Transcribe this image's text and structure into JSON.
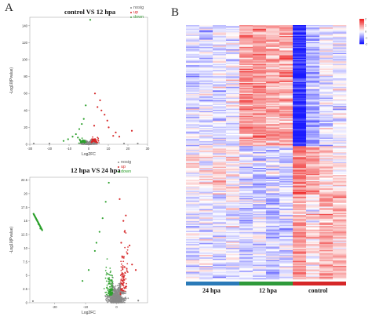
{
  "panels": {
    "a": "A",
    "b": "B"
  },
  "chart_data": [
    {
      "type": "scatter",
      "title": "control VS 12 hpa",
      "xlabel": "Log2FC",
      "ylabel": "-Log10(Pvalue)",
      "xlim": [
        -30,
        30
      ],
      "ylim": [
        0,
        150
      ],
      "xticks": [
        -30,
        -20,
        -10,
        0,
        10,
        20,
        30
      ],
      "yticks": [
        0,
        20,
        40,
        60,
        80,
        100,
        120,
        140
      ],
      "legend": [
        "nosig",
        "up",
        "down"
      ],
      "legend_position": "top-right",
      "colors": {
        "nosig": "#8a8a8a",
        "up": "#d62728",
        "down": "#2ca02c"
      },
      "series": [
        {
          "name": "up",
          "points": [
            [
              3.2,
              60
            ],
            [
              5.8,
              52
            ],
            [
              8.1,
              35
            ],
            [
              4.5,
              44
            ],
            [
              10.2,
              20
            ],
            [
              12.5,
              10
            ],
            [
              15.6,
              9
            ],
            [
              22,
              16
            ],
            [
              6.5,
              40
            ],
            [
              9.5,
              28
            ],
            [
              2.8,
              22
            ],
            [
              13.8,
              14
            ]
          ]
        },
        {
          "name": "down",
          "points": [
            [
              -2.5,
              30
            ],
            [
              -4.8,
              18
            ],
            [
              -6.5,
              12
            ],
            [
              -8.2,
              9
            ],
            [
              -3.5,
              24
            ],
            [
              -1.5,
              46
            ],
            [
              -10.5,
              6
            ],
            [
              -12.8,
              4
            ],
            [
              0.8,
              147
            ],
            [
              -5.5,
              8
            ]
          ]
        },
        {
          "name": "nosig",
          "points": [
            [
              -0.5,
              2
            ],
            [
              0.4,
              3
            ],
            [
              -1.2,
              4
            ],
            [
              1.1,
              5
            ],
            [
              -2.8,
              1
            ],
            [
              2.5,
              2
            ],
            [
              -28,
              1
            ],
            [
              18,
              1
            ],
            [
              -20,
              1
            ],
            [
              25,
              1
            ]
          ]
        }
      ]
    },
    {
      "type": "scatter",
      "title": "12 hpa VS 24 hpa",
      "xlabel": "Log2FC",
      "ylabel": "-Log10(Pvalue)",
      "xlim": [
        -28,
        10
      ],
      "ylim": [
        0,
        23
      ],
      "xticks": [
        -20,
        -10,
        0
      ],
      "yticks": [
        0,
        2.5,
        5,
        7.5,
        10,
        12.5,
        15,
        17.5,
        20,
        22.5
      ],
      "legend": [
        "nosig",
        "up",
        "down"
      ],
      "legend_position": "top-right",
      "colors": {
        "nosig": "#8a8a8a",
        "up": "#d62728",
        "down": "#2ca02c"
      },
      "series": [
        {
          "name": "up",
          "points": [
            [
              1.0,
              19
            ],
            [
              2.2,
              15
            ],
            [
              3.0,
              16
            ],
            [
              1.5,
              11
            ],
            [
              3.5,
              9
            ],
            [
              5.0,
              7
            ],
            [
              2.6,
              13
            ],
            [
              4.2,
              10.5
            ],
            [
              6.2,
              6
            ],
            [
              1.8,
              8.5
            ]
          ]
        },
        {
          "name": "down",
          "points": [
            [
              -26.5,
              16
            ],
            [
              -25.8,
              15.2
            ],
            [
              -25.2,
              14.4
            ],
            [
              -24.6,
              13.6
            ],
            [
              -3.5,
              18.5
            ],
            [
              -5.5,
              13
            ],
            [
              -7,
              9.5
            ],
            [
              -9,
              6
            ],
            [
              -2.5,
              22
            ],
            [
              -6.5,
              11
            ],
            [
              -11,
              4
            ],
            [
              -4.5,
              15.5
            ]
          ]
        },
        {
          "name": "nosig",
          "points": [
            [
              -1,
              1
            ],
            [
              0.5,
              1.5
            ],
            [
              -2,
              0.8
            ],
            [
              1.5,
              2
            ],
            [
              -3,
              1.2
            ],
            [
              2.5,
              0.5
            ],
            [
              -27,
              0.3
            ],
            [
              7,
              0.4
            ]
          ]
        }
      ]
    },
    {
      "type": "heatmap",
      "groups": [
        {
          "label": "24 hpa",
          "color": "#2a7ab8",
          "columns": 4
        },
        {
          "label": "12 hpa",
          "color": "#2e9a3a",
          "columns": 4
        },
        {
          "label": "control",
          "color": "#d62728",
          "columns": 4
        }
      ],
      "rows": 210,
      "colorscale": [
        "#1a1aff",
        "#ffffff",
        "#ee2222"
      ],
      "range": [
        -2,
        2
      ],
      "colorbar_ticks": [
        "2",
        "1",
        "0",
        "-1",
        "-2"
      ],
      "row_blocks": [
        {
          "rows": 100,
          "means": [
            -0.3,
            -0.3,
            -0.2,
            -0.2,
            0.9,
            0.9,
            0.8,
            0.8,
            -1.9,
            -0.7,
            -0.2,
            -0.1
          ]
        },
        {
          "rows": 40,
          "means": [
            0.1,
            0.2,
            0.3,
            0.2,
            -0.4,
            -0.5,
            -0.3,
            -0.4,
            1.2,
            0.8,
            0.3,
            0.2
          ]
        },
        {
          "rows": 70,
          "means": [
            -0.2,
            -0.1,
            -0.2,
            -0.1,
            -0.4,
            -0.3,
            -0.5,
            -0.3,
            0.9,
            0.2,
            0.8,
            0.6
          ]
        }
      ]
    }
  ]
}
